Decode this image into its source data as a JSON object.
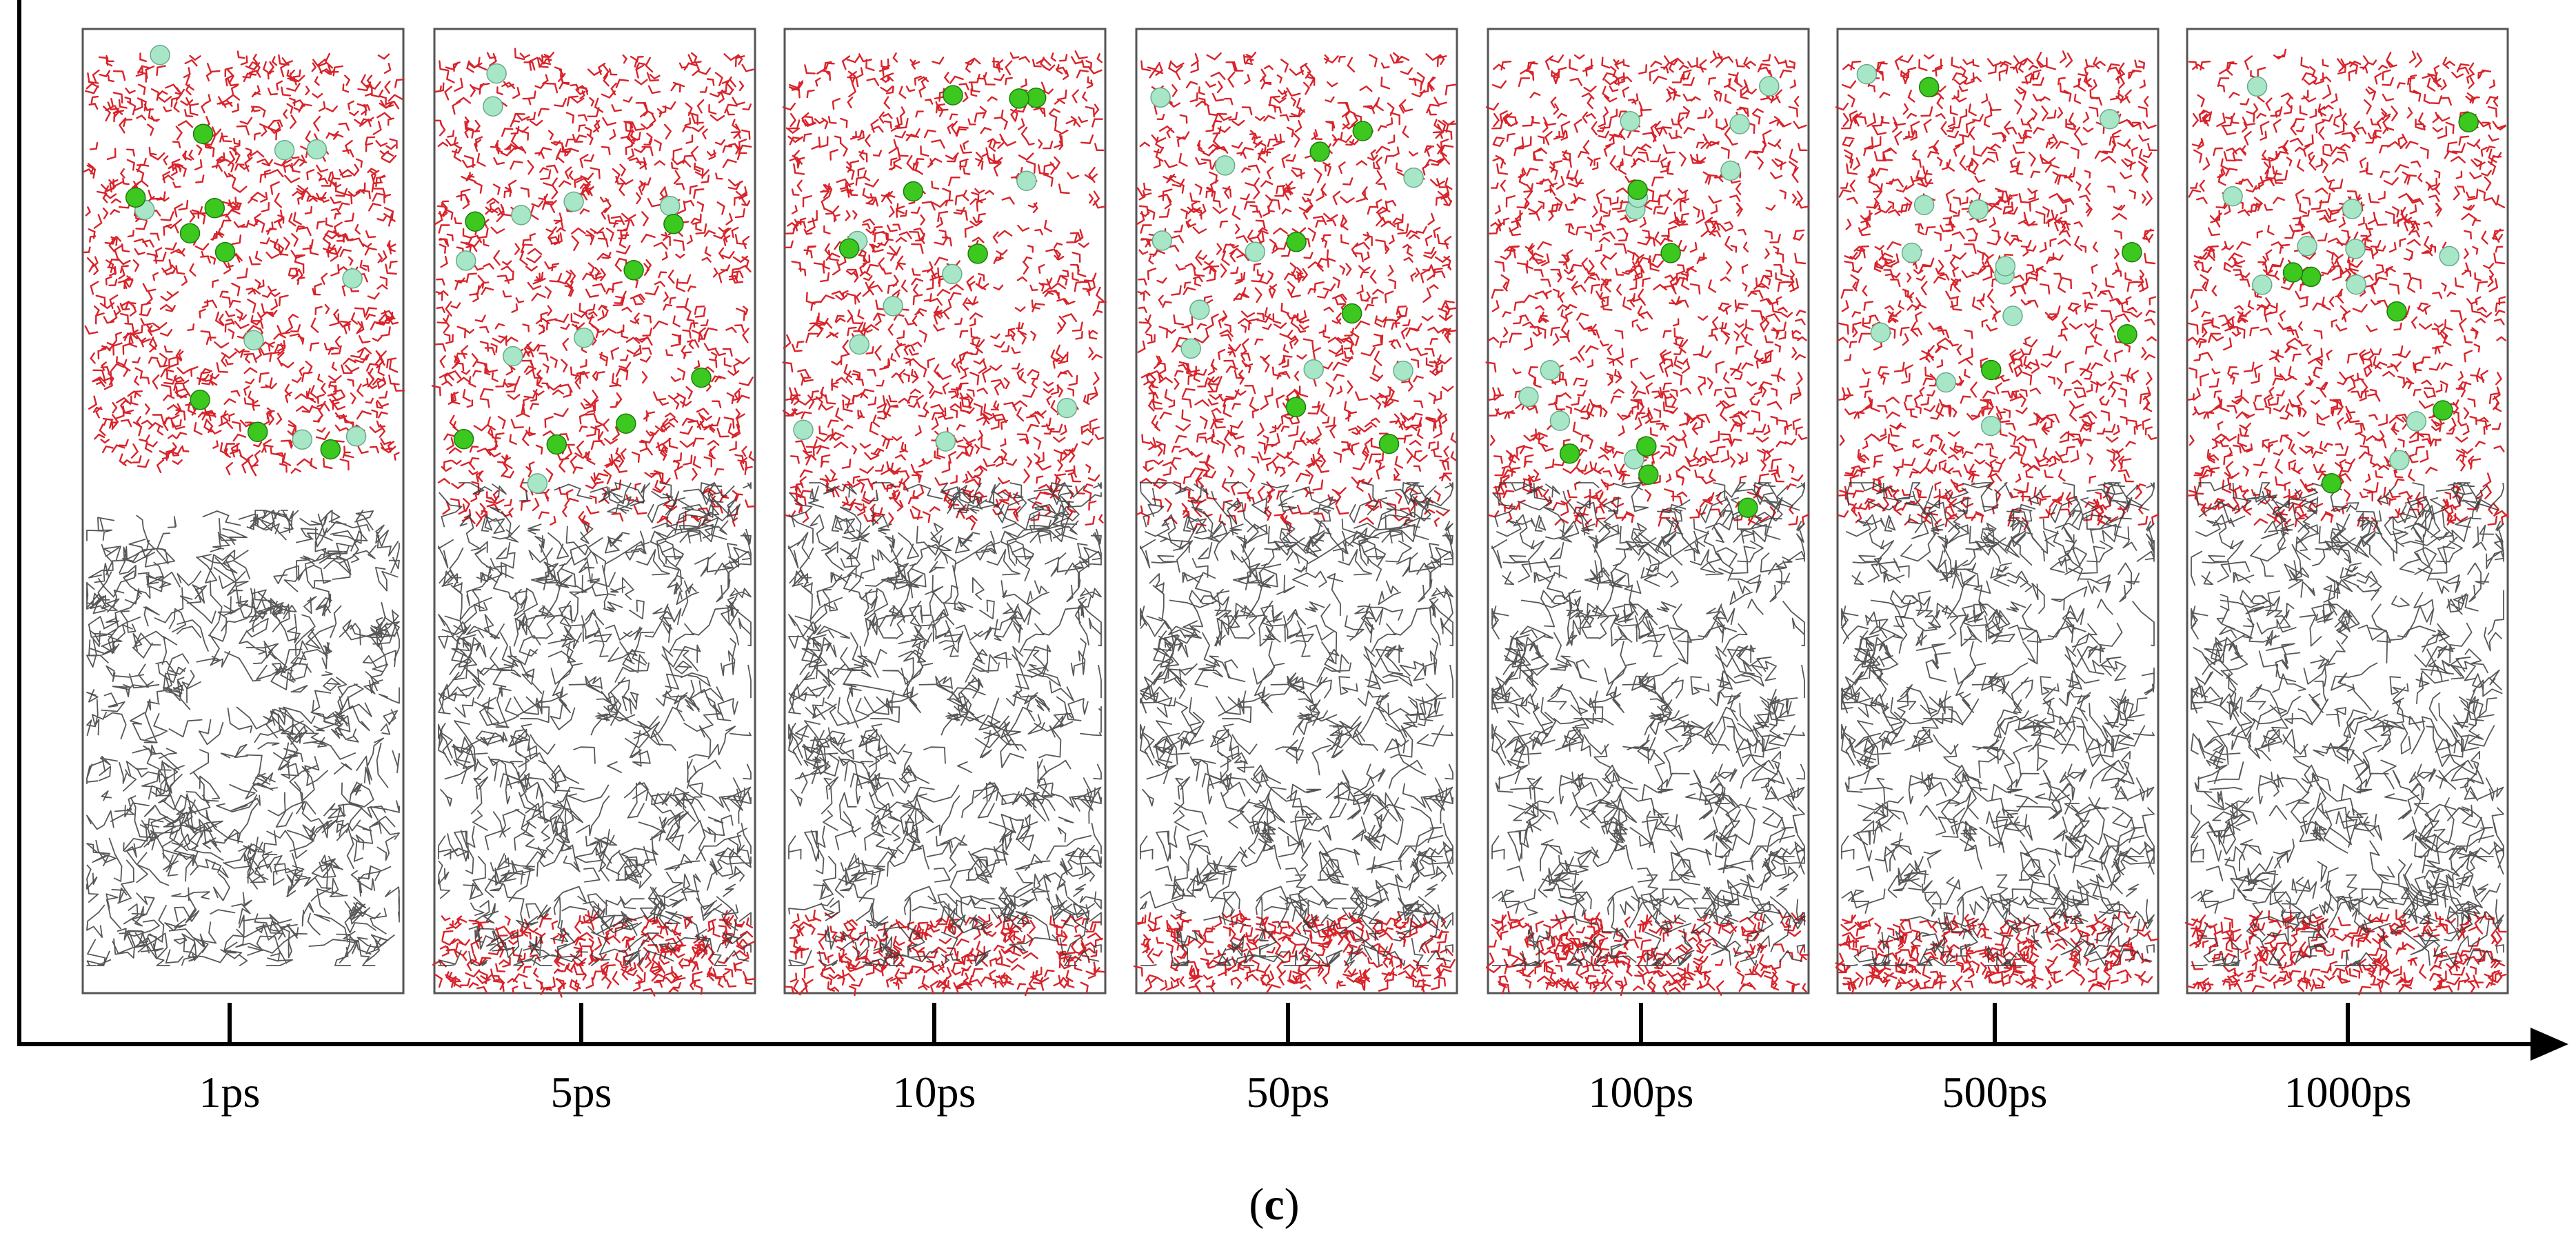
{
  "figure": {
    "panels": [
      {
        "time_label": "1ps",
        "dark_ions": 8,
        "light_ions": 8,
        "water_region": "top-only"
      },
      {
        "time_label": "5ps",
        "dark_ions": 7,
        "light_ions": 9,
        "water_region": "top-and-bottom"
      },
      {
        "time_label": "10ps",
        "dark_ions": 6,
        "light_ions": 8,
        "water_region": "top-and-bottom"
      },
      {
        "time_label": "50ps",
        "dark_ions": 6,
        "light_ions": 9,
        "water_region": "top-and-bottom"
      },
      {
        "time_label": "100ps",
        "dark_ions": 6,
        "light_ions": 10,
        "water_region": "top-and-bottom"
      },
      {
        "time_label": "500ps",
        "dark_ions": 4,
        "light_ions": 11,
        "water_region": "top-and-bottom"
      },
      {
        "time_label": "1000ps",
        "dark_ions": 6,
        "light_ions": 10,
        "water_region": "top-and-bottom"
      }
    ],
    "caption": {
      "open": "(",
      "letter": "c",
      "close": ")"
    }
  },
  "colors": {
    "water": "#d8232a",
    "network": "#3a3a3a",
    "ion_dark": "#3cc81e",
    "ion_light": "#a8e6c8",
    "frame": "#555555",
    "axis": "#000000"
  }
}
